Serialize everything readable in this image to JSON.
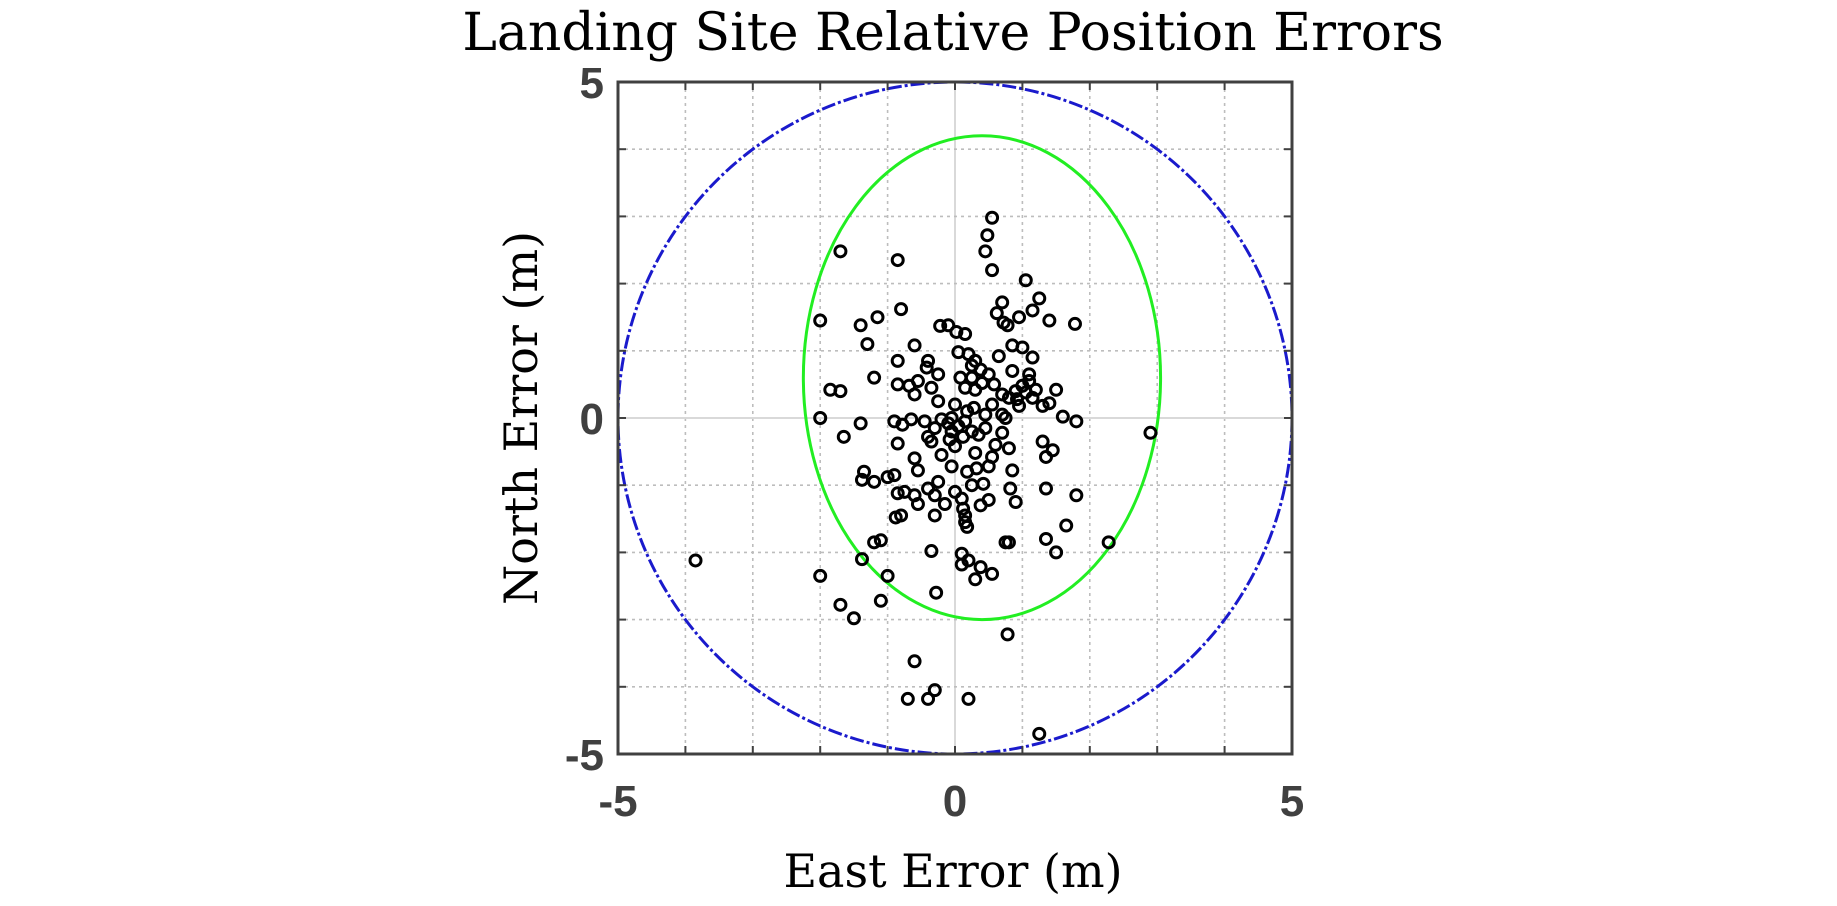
{
  "chart_data": {
    "type": "scatter",
    "title": "Landing Site Relative Position Errors",
    "xlabel": "East Error (m)",
    "ylabel": "North Error (m)",
    "xlim": [
      -5,
      5
    ],
    "ylim": [
      -5,
      5
    ],
    "xticks": [
      -5,
      0,
      5
    ],
    "yticks": [
      -5,
      0,
      5
    ],
    "xtick_labels": [
      "-5",
      "0",
      "5"
    ],
    "ytick_labels": [
      "-5",
      "0",
      "5"
    ],
    "minor_grid_step": 1,
    "grid": true,
    "colors": {
      "points": "#000000",
      "ellipse": "#22ee22",
      "circle": "#1a1acc",
      "axis": "#404040"
    },
    "circle": {
      "center": [
        0,
        0
      ],
      "radius": 5,
      "style": "dash-dot"
    },
    "ellipse": {
      "center": [
        0.4,
        0.6
      ],
      "semi_axis_x": 2.65,
      "semi_axis_y": 3.6,
      "style": "solid"
    },
    "points": [
      [
        0.55,
        2.98
      ],
      [
        0.48,
        2.72
      ],
      [
        0.45,
        2.48
      ],
      [
        0.55,
        2.2
      ],
      [
        1.05,
        2.05
      ],
      [
        -1.7,
        2.48
      ],
      [
        -0.85,
        2.35
      ],
      [
        0.7,
        1.72
      ],
      [
        1.25,
        1.78
      ],
      [
        1.15,
        1.6
      ],
      [
        0.95,
        1.5
      ],
      [
        1.78,
        1.4
      ],
      [
        1.4,
        1.45
      ],
      [
        -2.0,
        1.45
      ],
      [
        -1.15,
        1.5
      ],
      [
        -0.8,
        1.62
      ],
      [
        -1.4,
        1.38
      ],
      [
        -0.1,
        1.38
      ],
      [
        -0.22,
        1.37
      ],
      [
        0.02,
        1.28
      ],
      [
        0.15,
        1.25
      ],
      [
        0.72,
        1.42
      ],
      [
        0.62,
        1.56
      ],
      [
        0.78,
        1.38
      ],
      [
        -1.3,
        1.1
      ],
      [
        -0.6,
        1.08
      ],
      [
        0.05,
        0.98
      ],
      [
        0.2,
        0.95
      ],
      [
        0.85,
        1.08
      ],
      [
        1.0,
        1.05
      ],
      [
        1.15,
        0.9
      ],
      [
        -0.4,
        0.85
      ],
      [
        -0.85,
        0.85
      ],
      [
        0.3,
        0.85
      ],
      [
        0.65,
        0.92
      ],
      [
        0.25,
        0.78
      ],
      [
        0.38,
        0.72
      ],
      [
        -0.42,
        0.75
      ],
      [
        -0.25,
        0.65
      ],
      [
        0.5,
        0.65
      ],
      [
        1.1,
        0.65
      ],
      [
        -1.2,
        0.6
      ],
      [
        -0.55,
        0.55
      ],
      [
        0.08,
        0.6
      ],
      [
        0.25,
        0.6
      ],
      [
        0.85,
        0.7
      ],
      [
        0.4,
        0.52
      ],
      [
        0.58,
        0.5
      ],
      [
        1.0,
        0.48
      ],
      [
        1.1,
        0.55
      ],
      [
        -0.85,
        0.5
      ],
      [
        -0.68,
        0.48
      ],
      [
        -0.35,
        0.45
      ],
      [
        0.15,
        0.45
      ],
      [
        0.3,
        0.42
      ],
      [
        0.9,
        0.4
      ],
      [
        1.05,
        0.38
      ],
      [
        1.2,
        0.42
      ],
      [
        1.5,
        0.42
      ],
      [
        -1.85,
        0.42
      ],
      [
        -1.7,
        0.4
      ],
      [
        -0.6,
        0.35
      ],
      [
        0.7,
        0.35
      ],
      [
        0.8,
        0.3
      ],
      [
        0.92,
        0.28
      ],
      [
        1.15,
        0.3
      ],
      [
        -0.25,
        0.25
      ],
      [
        0.0,
        0.2
      ],
      [
        0.28,
        0.15
      ],
      [
        0.55,
        0.2
      ],
      [
        0.95,
        0.18
      ],
      [
        1.3,
        0.18
      ],
      [
        1.4,
        0.22
      ],
      [
        0.18,
        0.1
      ],
      [
        0.7,
        0.05
      ],
      [
        0.45,
        0.05
      ],
      [
        -0.05,
        0.0
      ],
      [
        1.6,
        0.02
      ],
      [
        1.8,
        -0.05
      ],
      [
        -2.0,
        0.0
      ],
      [
        -1.4,
        -0.08
      ],
      [
        -0.9,
        -0.05
      ],
      [
        -0.65,
        -0.02
      ],
      [
        -0.45,
        -0.05
      ],
      [
        -0.2,
        -0.02
      ],
      [
        -0.1,
        -0.08
      ],
      [
        0.15,
        -0.05
      ],
      [
        0.75,
        0.0
      ],
      [
        -0.78,
        -0.1
      ],
      [
        0.05,
        -0.12
      ],
      [
        -0.3,
        -0.15
      ],
      [
        -0.05,
        -0.2
      ],
      [
        0.25,
        -0.2
      ],
      [
        0.45,
        -0.15
      ],
      [
        0.7,
        -0.22
      ],
      [
        -1.65,
        -0.28
      ],
      [
        -0.4,
        -0.28
      ],
      [
        -0.08,
        -0.32
      ],
      [
        0.12,
        -0.28
      ],
      [
        0.35,
        -0.25
      ],
      [
        1.3,
        -0.35
      ],
      [
        2.9,
        -0.22
      ],
      [
        -0.85,
        -0.38
      ],
      [
        -0.35,
        -0.35
      ],
      [
        0.0,
        -0.42
      ],
      [
        0.6,
        -0.4
      ],
      [
        0.8,
        -0.45
      ],
      [
        1.45,
        -0.48
      ],
      [
        -0.6,
        -0.6
      ],
      [
        -0.2,
        -0.55
      ],
      [
        0.3,
        -0.52
      ],
      [
        0.55,
        -0.58
      ],
      [
        1.35,
        -0.58
      ],
      [
        -0.05,
        -0.72
      ],
      [
        -0.55,
        -0.78
      ],
      [
        0.18,
        -0.8
      ],
      [
        0.32,
        -0.75
      ],
      [
        0.5,
        -0.72
      ],
      [
        0.85,
        -0.78
      ],
      [
        -0.9,
        -0.85
      ],
      [
        -1.0,
        -0.88
      ],
      [
        -1.35,
        -0.8
      ],
      [
        -1.2,
        -0.95
      ],
      [
        -0.25,
        -0.95
      ],
      [
        0.42,
        -0.98
      ],
      [
        1.35,
        -1.05
      ],
      [
        -1.38,
        -0.92
      ],
      [
        -0.75,
        -1.1
      ],
      [
        -0.4,
        -1.05
      ],
      [
        0.0,
        -1.1
      ],
      [
        0.25,
        -1.0
      ],
      [
        0.82,
        -1.05
      ],
      [
        -0.85,
        -1.12
      ],
      [
        -0.6,
        -1.15
      ],
      [
        -0.3,
        -1.15
      ],
      [
        0.1,
        -1.2
      ],
      [
        0.5,
        -1.22
      ],
      [
        0.9,
        -1.25
      ],
      [
        1.8,
        -1.15
      ],
      [
        -0.55,
        -1.28
      ],
      [
        -0.15,
        -1.28
      ],
      [
        0.12,
        -1.35
      ],
      [
        0.38,
        -1.3
      ],
      [
        -0.8,
        -1.45
      ],
      [
        -0.3,
        -1.45
      ],
      [
        0.15,
        -1.45
      ],
      [
        -0.88,
        -1.48
      ],
      [
        0.15,
        -1.55
      ],
      [
        0.18,
        -1.62
      ],
      [
        -1.1,
        -1.82
      ],
      [
        -1.2,
        -1.85
      ],
      [
        0.75,
        -1.85
      ],
      [
        0.8,
        -1.85
      ],
      [
        1.35,
        -1.8
      ],
      [
        1.65,
        -1.6
      ],
      [
        2.28,
        -1.85
      ],
      [
        -0.35,
        -1.98
      ],
      [
        0.1,
        -2.02
      ],
      [
        0.2,
        -2.12
      ],
      [
        0.1,
        -2.18
      ],
      [
        1.5,
        -2.0
      ],
      [
        -3.85,
        -2.12
      ],
      [
        0.38,
        -2.22
      ],
      [
        0.55,
        -2.32
      ],
      [
        0.3,
        -2.4
      ],
      [
        -2.0,
        -2.35
      ],
      [
        -1.38,
        -2.1
      ],
      [
        -1.0,
        -2.35
      ],
      [
        -0.28,
        -2.6
      ],
      [
        -1.1,
        -2.72
      ],
      [
        -1.7,
        -2.78
      ],
      [
        -1.5,
        -2.98
      ],
      [
        0.78,
        -3.22
      ],
      [
        -0.6,
        -3.62
      ],
      [
        -0.3,
        -4.05
      ],
      [
        -0.4,
        -4.18
      ],
      [
        -0.7,
        -4.18
      ],
      [
        0.2,
        -4.18
      ],
      [
        1.25,
        -4.7
      ]
    ]
  }
}
